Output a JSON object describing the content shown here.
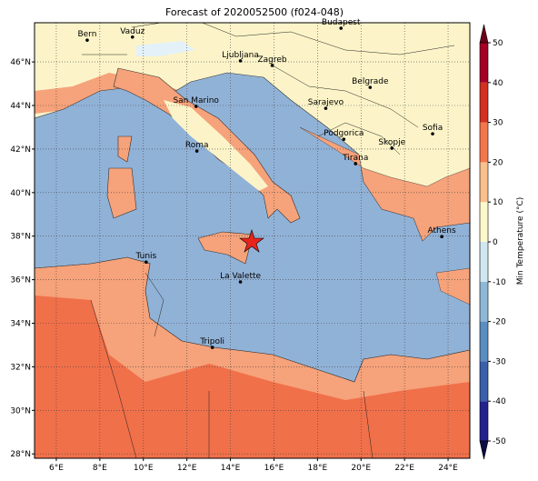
{
  "map": {
    "title": "Forecast of 2020052500 (f024-048)",
    "xlim": [
      5,
      25
    ],
    "ylim": [
      27.8,
      47.8
    ],
    "xticks": [
      {
        "value": 6,
        "label": "6°E"
      },
      {
        "value": 8,
        "label": "8°E"
      },
      {
        "value": 10,
        "label": "10°E"
      },
      {
        "value": 12,
        "label": "12°E"
      },
      {
        "value": 14,
        "label": "14°E"
      },
      {
        "value": 16,
        "label": "16°E"
      },
      {
        "value": 18,
        "label": "18°E"
      },
      {
        "value": 20,
        "label": "20°E"
      },
      {
        "value": 22,
        "label": "22°E"
      },
      {
        "value": 24,
        "label": "24°E"
      }
    ],
    "yticks": [
      {
        "value": 28,
        "label": "28°N"
      },
      {
        "value": 30,
        "label": "30°N"
      },
      {
        "value": 32,
        "label": "32°N"
      },
      {
        "value": 34,
        "label": "34°N"
      },
      {
        "value": 36,
        "label": "36°N"
      },
      {
        "value": 38,
        "label": "38°N"
      },
      {
        "value": 40,
        "label": "40°N"
      },
      {
        "value": 42,
        "label": "42°N"
      },
      {
        "value": 44,
        "label": "44°N"
      },
      {
        "value": 46,
        "label": "46°N"
      }
    ],
    "grid": true,
    "cities": [
      {
        "name": "Bern",
        "lon": 7.42,
        "lat": 47.0
      },
      {
        "name": "Vaduz",
        "lon": 9.5,
        "lat": 47.14
      },
      {
        "name": "Budapest",
        "lon": 19.08,
        "lat": 47.55
      },
      {
        "name": "Ljubljana",
        "lon": 14.46,
        "lat": 46.05
      },
      {
        "name": "Zagreb",
        "lon": 15.92,
        "lat": 45.84
      },
      {
        "name": "San Marino",
        "lon": 12.42,
        "lat": 43.96
      },
      {
        "name": "Belgrade",
        "lon": 20.42,
        "lat": 44.83
      },
      {
        "name": "Sarajevo",
        "lon": 18.38,
        "lat": 43.87
      },
      {
        "name": "Sofia",
        "lon": 23.29,
        "lat": 42.7
      },
      {
        "name": "Podgorica",
        "lon": 19.21,
        "lat": 42.45
      },
      {
        "name": "Skopje",
        "lon": 21.42,
        "lat": 42.04
      },
      {
        "name": "Roma",
        "lon": 12.46,
        "lat": 41.91
      },
      {
        "name": "Tirana",
        "lon": 19.75,
        "lat": 41.33
      },
      {
        "name": "Athens",
        "lon": 23.71,
        "lat": 37.98
      },
      {
        "name": "Tunis",
        "lon": 10.13,
        "lat": 36.81
      },
      {
        "name": "La Valette",
        "lon": 14.46,
        "lat": 35.9
      },
      {
        "name": "Tripoli",
        "lon": 13.17,
        "lat": 32.89
      }
    ],
    "colorbar": {
      "label": "Min Temperature (°C)",
      "lim": [
        -50,
        50
      ],
      "ticks": [
        -50,
        -40,
        -30,
        -20,
        -10,
        0,
        10,
        20,
        30,
        40,
        50
      ],
      "colors": [
        "#23238e",
        "#3a5fab",
        "#5a8dc0",
        "#8fb8d6",
        "#cfe7ef",
        "#fdf7cc",
        "#f9c08c",
        "#f4774c",
        "#d4301f",
        "#a50026"
      ],
      "under_color": "#0b0b4a",
      "over_color": "#6e0019"
    }
  }
}
